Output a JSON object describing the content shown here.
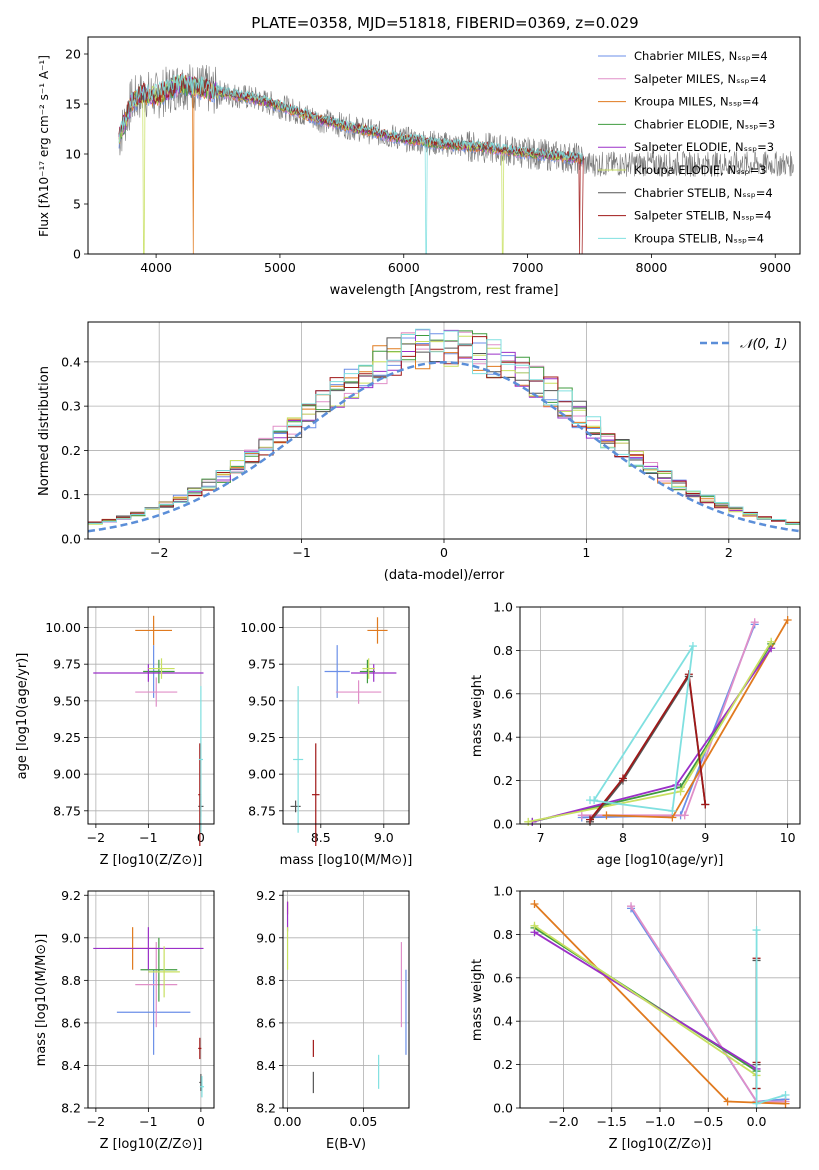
{
  "colors": {
    "chabrier_miles": "#6b8fe8",
    "salpeter_miles": "#e08fc8",
    "kroupa_miles": "#e07a1f",
    "chabrier_elodie": "#3f9b3f",
    "salpeter_elodie": "#9b30c8",
    "kroupa_elodie": "#c8e060",
    "chabrier_stelib": "#555555",
    "salpeter_stelib": "#a01818",
    "kroupa_stelib": "#80e0e0",
    "normal": "#5b8ed8"
  },
  "chart_data": [
    {
      "type": "line",
      "title": "PLATE=0358, MJD=51818, FIBERID=0369, z=0.029",
      "xlabel": "wavelength [Angstrom, rest frame]",
      "ylabel": "Flux [fλ10⁻¹⁷ erg cm⁻² s⁻¹ A⁻¹]",
      "xlim": [
        3450,
        9200
      ],
      "ylim": [
        0,
        21.7
      ],
      "xticks": [
        4000,
        5000,
        6000,
        7000,
        8000,
        9000
      ],
      "yticks": [
        0,
        5,
        10,
        15,
        20
      ],
      "legend_position": "top-right",
      "legend": [
        "Chabrier MILES, N_SSP=4",
        "Salpeter MILES, N_SSP=4",
        "Kroupa MILES, N_SSP=4",
        "Chabrier ELODIE, N_SSP=3",
        "Salpeter ELODIE, N_SSP=3",
        "Kroupa ELODIE, N_SSP=3",
        "Chabrier STELIB, N_SSP=4",
        "Salpeter STELIB, N_SSP=4",
        "Kroupa STELIB, N_SSP=4"
      ],
      "continuum": {
        "x": [
          3700,
          3800,
          3900,
          4000,
          4200,
          4500,
          4800,
          5000,
          5300,
          5600,
          6000,
          6300,
          6600,
          7000,
          7300,
          7450
        ],
        "y": [
          11.5,
          15.2,
          16.0,
          15.8,
          17.0,
          16.2,
          15.5,
          14.8,
          13.5,
          12.6,
          11.5,
          11.0,
          10.7,
          10.1,
          9.7,
          9.5
        ]
      },
      "features": [
        {
          "x": 3900,
          "y": 0
        },
        {
          "x": 4300,
          "y": 0
        },
        {
          "x": 6180,
          "y": 0
        },
        {
          "x": 6800,
          "y": 0
        },
        {
          "x": 7420,
          "y": 0
        }
      ]
    },
    {
      "type": "step",
      "xlabel": "(data-model)/error",
      "ylabel": "Normed distribution",
      "xlim": [
        -2.5,
        2.5
      ],
      "ylim": [
        0,
        0.49
      ],
      "xticks": [
        -2,
        -1,
        0,
        1,
        2
      ],
      "yticks": [
        0.0,
        0.1,
        0.2,
        0.3,
        0.4
      ],
      "legend": [
        "𝒩(0, 1)"
      ],
      "legend_position": "top-right",
      "bin_width": 0.1
    },
    {
      "type": "errorbar",
      "xlabel": "Z [log10(Z/Z⊙)]",
      "ylabel": "age  [log10(age/yr)]",
      "xlim": [
        -2.15,
        0.25
      ],
      "ylim": [
        8.66,
        10.14
      ],
      "xticks": [
        -2,
        -1,
        0
      ],
      "yticks": [
        8.75,
        9.0,
        9.25,
        9.5,
        9.75,
        10.0
      ],
      "points": [
        {
          "model": "chabrier_miles",
          "x": -0.9,
          "xerr": 0.1,
          "y": 9.7,
          "yerr": 0.18
        },
        {
          "model": "salpeter_miles",
          "x": -0.85,
          "xerr": 0.4,
          "y": 9.56,
          "yerr": 0.1
        },
        {
          "model": "kroupa_miles",
          "x": -0.9,
          "xerr": 0.35,
          "y": 9.98,
          "yerr": 0.1
        },
        {
          "model": "chabrier_elodie",
          "x": -0.8,
          "xerr": 0.3,
          "y": 9.7,
          "yerr": 0.08
        },
        {
          "model": "salpeter_elodie",
          "x": -1.0,
          "xerr": 1.05,
          "y": 9.69,
          "yerr": 0.06
        },
        {
          "model": "kroupa_elodie",
          "x": -0.75,
          "xerr": 0.25,
          "y": 9.72,
          "yerr": 0.07
        },
        {
          "model": "chabrier_stelib",
          "x": 0.0,
          "xerr": 0.05,
          "y": 8.78,
          "yerr": 0.07
        },
        {
          "model": "salpeter_stelib",
          "x": -0.02,
          "xerr": 0.03,
          "y": 8.86,
          "yerr": 0.35
        },
        {
          "model": "kroupa_stelib",
          "x": 0.0,
          "xerr": 0.04,
          "y": 9.1,
          "yerr": 0.5
        }
      ]
    },
    {
      "type": "errorbar",
      "xlabel": "mass [log10(M/M⊙)]",
      "xlim": [
        8.2,
        9.2
      ],
      "ylim": [
        8.66,
        10.14
      ],
      "xticks": [
        8.5,
        9.0
      ],
      "yticks": [
        8.75,
        9.0,
        9.25,
        9.5,
        9.75,
        10.0
      ],
      "points": [
        {
          "model": "chabrier_miles",
          "x": 8.63,
          "xerr": 0.1,
          "y": 9.7,
          "yerr": 0.18
        },
        {
          "model": "salpeter_miles",
          "x": 8.8,
          "xerr": 0.18,
          "y": 9.56,
          "yerr": 0.08
        },
        {
          "model": "kroupa_miles",
          "x": 8.95,
          "xerr": 0.08,
          "y": 9.98,
          "yerr": 0.09
        },
        {
          "model": "chabrier_elodie",
          "x": 8.87,
          "xerr": 0.06,
          "y": 9.7,
          "yerr": 0.08
        },
        {
          "model": "salpeter_elodie",
          "x": 8.92,
          "xerr": 0.18,
          "y": 9.69,
          "yerr": 0.06
        },
        {
          "model": "kroupa_elodie",
          "x": 8.88,
          "xerr": 0.05,
          "y": 9.72,
          "yerr": 0.07
        },
        {
          "model": "chabrier_stelib",
          "x": 8.3,
          "xerr": 0.04,
          "y": 8.78,
          "yerr": 0.04
        },
        {
          "model": "salpeter_stelib",
          "x": 8.46,
          "xerr": 0.03,
          "y": 8.86,
          "yerr": 0.35
        },
        {
          "model": "kroupa_stelib",
          "x": 8.32,
          "xerr": 0.04,
          "y": 9.1,
          "yerr": 0.5
        }
      ]
    },
    {
      "type": "line",
      "xlabel": "age  [log10(age/yr)]",
      "ylabel": "mass weight",
      "xlim": [
        6.75,
        10.15
      ],
      "ylim": [
        0,
        1.0
      ],
      "xticks": [
        7,
        8,
        9,
        10
      ],
      "yticks": [
        0.0,
        0.2,
        0.4,
        0.6,
        0.8,
        1.0
      ],
      "series": [
        {
          "model": "chabrier_miles",
          "x": [
            7.5,
            8.7,
            9.6
          ],
          "y": [
            0.03,
            0.04,
            0.92
          ]
        },
        {
          "model": "salpeter_miles",
          "x": [
            7.5,
            8.75,
            9.6
          ],
          "y": [
            0.04,
            0.04,
            0.93
          ]
        },
        {
          "model": "kroupa_miles",
          "x": [
            7.8,
            8.6,
            10.0
          ],
          "y": [
            0.04,
            0.03,
            0.94
          ]
        },
        {
          "model": "chabrier_elodie",
          "x": [
            6.9,
            8.7,
            9.8
          ],
          "y": [
            0.01,
            0.17,
            0.83
          ]
        },
        {
          "model": "salpeter_elodie",
          "x": [
            6.9,
            8.65,
            9.8
          ],
          "y": [
            0.01,
            0.18,
            0.81
          ]
        },
        {
          "model": "kroupa_elodie",
          "x": [
            6.85,
            8.7,
            9.8
          ],
          "y": [
            0.01,
            0.15,
            0.84
          ]
        },
        {
          "model": "chabrier_stelib",
          "x": [
            7.6,
            8.0,
            8.8,
            9.0
          ],
          "y": [
            0.01,
            0.2,
            0.68,
            0.09
          ]
        },
        {
          "model": "salpeter_stelib",
          "x": [
            7.6,
            8.0,
            8.8,
            9.0
          ],
          "y": [
            0.02,
            0.21,
            0.69,
            0.09
          ]
        },
        {
          "model": "kroupa_stelib",
          "x": [
            7.6,
            8.6,
            8.85,
            7.65
          ],
          "y": [
            0.11,
            0.06,
            0.82,
            0.11
          ]
        }
      ]
    },
    {
      "type": "errorbar",
      "xlabel": "Z [log10(Z/Z⊙)]",
      "ylabel": "mass [log10(M/M⊙)]",
      "xlim": [
        -2.15,
        0.25
      ],
      "ylim": [
        8.2,
        9.22
      ],
      "xticks": [
        -2,
        -1,
        0
      ],
      "yticks": [
        8.2,
        8.4,
        8.6,
        8.8,
        9.0,
        9.2
      ],
      "points": [
        {
          "model": "chabrier_miles",
          "x": -0.9,
          "xerr": 0.7,
          "y": 8.65,
          "yerr": 0.2
        },
        {
          "model": "salpeter_miles",
          "x": -0.85,
          "xerr": 0.4,
          "y": 8.78,
          "yerr": 0.2
        },
        {
          "model": "kroupa_miles",
          "x": -1.3,
          "xerr": 0.45,
          "y": 8.95,
          "yerr": 0.1
        },
        {
          "model": "chabrier_elodie",
          "x": -0.8,
          "xerr": 0.35,
          "y": 8.85,
          "yerr": 0.15
        },
        {
          "model": "salpeter_elodie",
          "x": -1.0,
          "xerr": 1.05,
          "y": 8.95,
          "yerr": 0.1
        },
        {
          "model": "kroupa_elodie",
          "x": -0.7,
          "xerr": 0.3,
          "y": 8.84,
          "yerr": 0.12
        },
        {
          "model": "chabrier_stelib",
          "x": 0.0,
          "xerr": 0.03,
          "y": 8.32,
          "yerr": 0.04
        },
        {
          "model": "salpeter_stelib",
          "x": -0.02,
          "xerr": 0.03,
          "y": 8.48,
          "yerr": 0.05
        },
        {
          "model": "kroupa_stelib",
          "x": 0.02,
          "xerr": 0.04,
          "y": 8.3,
          "yerr": 0.05
        }
      ]
    },
    {
      "type": "errorbar",
      "xlabel": "E(B-V)",
      "xlim": [
        -0.003,
        0.08
      ],
      "ylim": [
        8.2,
        9.22
      ],
      "xticks": [
        0.0,
        0.05
      ],
      "yticks": [
        8.2,
        8.4,
        8.6,
        8.8,
        9.0,
        9.2
      ],
      "points": [
        {
          "model": "chabrier_miles",
          "x": 0.078,
          "y": 8.65,
          "yerr": 0.2
        },
        {
          "model": "salpeter_miles",
          "x": 0.075,
          "y": 8.78,
          "yerr": 0.2
        },
        {
          "model": "kroupa_miles",
          "x": 0.0,
          "y": 9.14,
          "yerr": 0.03
        },
        {
          "model": "salpeter_elodie",
          "x": 0.0,
          "y": 9.1,
          "yerr": 0.07
        },
        {
          "model": "kroupa_elodie",
          "x": 0.0,
          "y": 8.95,
          "yerr": 0.1
        },
        {
          "model": "chabrier_stelib",
          "x": 0.017,
          "y": 8.32,
          "yerr": 0.05
        },
        {
          "model": "salpeter_stelib",
          "x": 0.017,
          "y": 8.48,
          "yerr": 0.04
        },
        {
          "model": "kroupa_stelib",
          "x": 0.06,
          "y": 8.37,
          "yerr": 0.08
        }
      ]
    },
    {
      "type": "line",
      "xlabel": "Z [log10(Z/Z⊙)]",
      "ylabel": "mass weight",
      "xlim": [
        -2.45,
        0.45
      ],
      "ylim": [
        0,
        1.0
      ],
      "xticks": [
        -2.0,
        -1.5,
        -1.0,
        -0.5,
        0.0
      ],
      "yticks": [
        0.0,
        0.2,
        0.4,
        0.6,
        0.8,
        1.0
      ],
      "series": [
        {
          "model": "chabrier_miles",
          "x": [
            -1.3,
            0.0,
            0.3
          ],
          "y": [
            0.92,
            0.03,
            0.04
          ]
        },
        {
          "model": "salpeter_miles",
          "x": [
            -1.3,
            0.0,
            0.3
          ],
          "y": [
            0.93,
            0.03,
            0.03
          ]
        },
        {
          "model": "kroupa_miles",
          "x": [
            -2.3,
            -0.3,
            0.3
          ],
          "y": [
            0.94,
            0.03,
            0.02
          ]
        },
        {
          "model": "chabrier_elodie",
          "x": [
            -2.3,
            0.0
          ],
          "y": [
            0.83,
            0.17
          ]
        },
        {
          "model": "salpeter_elodie",
          "x": [
            -2.3,
            0.0
          ],
          "y": [
            0.81,
            0.18
          ]
        },
        {
          "model": "kroupa_elodie",
          "x": [
            -2.3,
            0.0
          ],
          "y": [
            0.84,
            0.15
          ]
        },
        {
          "model": "chabrier_stelib",
          "x": [
            0.0,
            0.0,
            0.0
          ],
          "y": [
            0.68,
            0.2,
            0.09
          ]
        },
        {
          "model": "salpeter_stelib",
          "x": [
            0.0,
            0.0,
            0.0
          ],
          "y": [
            0.69,
            0.21,
            0.09
          ]
        },
        {
          "model": "kroupa_stelib",
          "x": [
            0.0,
            0.0,
            0.3
          ],
          "y": [
            0.82,
            0.02,
            0.06
          ]
        }
      ]
    }
  ]
}
